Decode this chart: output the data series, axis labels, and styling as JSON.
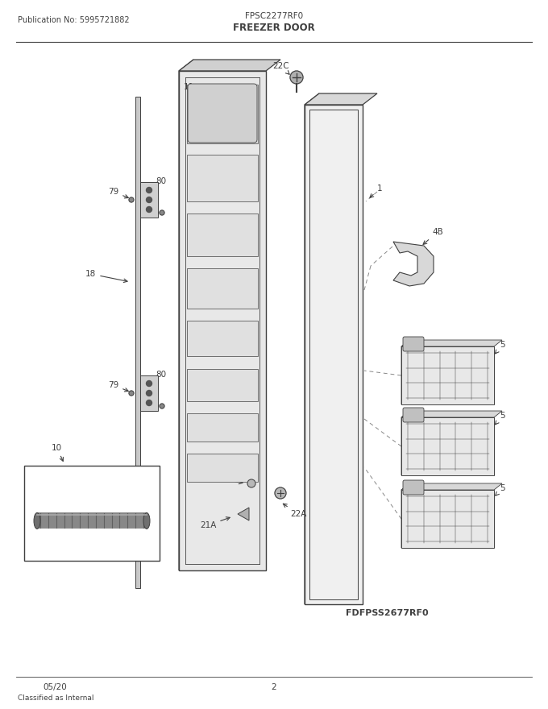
{
  "title_model": "FPSC2277RF0",
  "title_section": "FREEZER DOOR",
  "pub_no": "Publication No: 5995721882",
  "date": "05/20",
  "page": "2",
  "classified": "Classified as Internal",
  "ref_model": "FDFPSS2677RF0",
  "bg_color": "#ffffff",
  "line_color": "#404040",
  "fig_w": 6.8,
  "fig_h": 8.8,
  "dpi": 100
}
